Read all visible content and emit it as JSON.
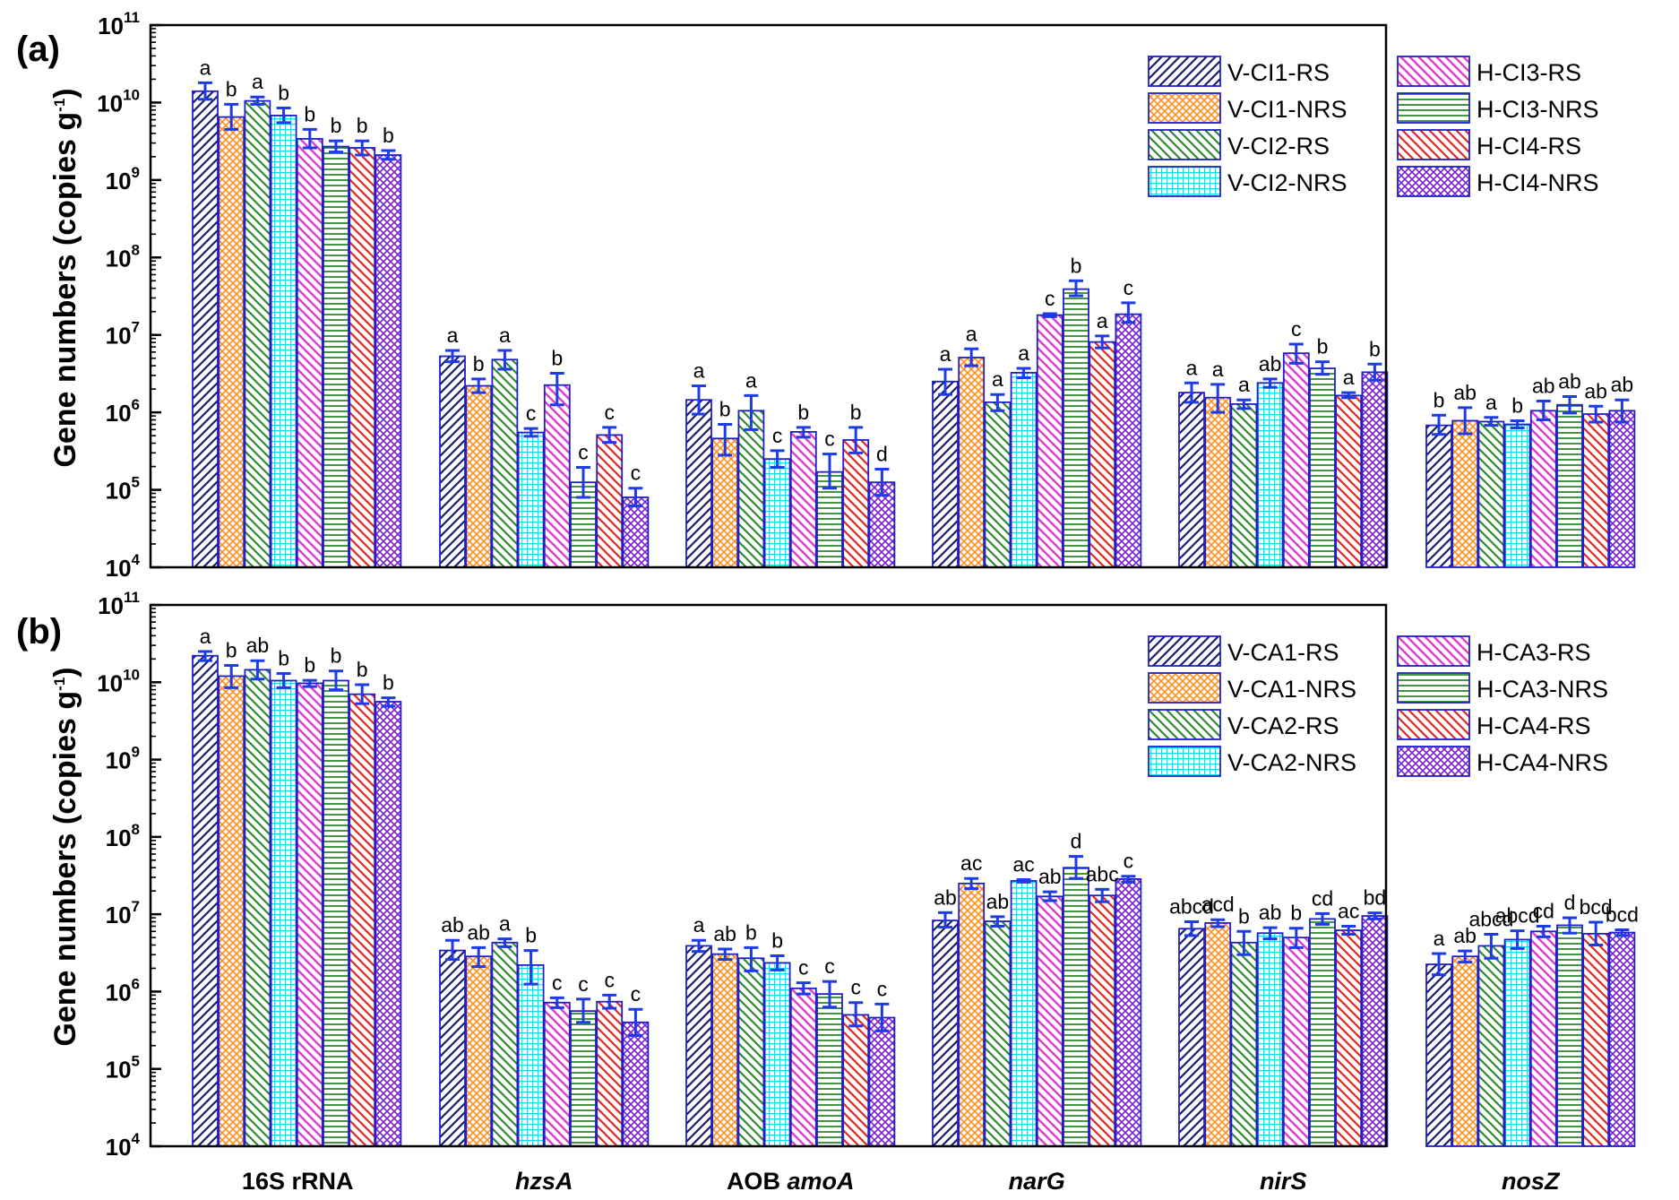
{
  "figure": {
    "y_axis_title": "Gene numbers (copies g",
    "y_axis_title_sup": "-1",
    "y_axis_title_end": ")"
  },
  "chart_data": [
    {
      "type": "bar",
      "panel_label": "(a)",
      "yscale": "log",
      "ylim": [
        10000,
        100000000000
      ],
      "yticks": [
        {
          "base": "10",
          "exp": "4",
          "value": 10000
        },
        {
          "base": "10",
          "exp": "5",
          "value": 100000
        },
        {
          "base": "10",
          "exp": "6",
          "value": 1000000
        },
        {
          "base": "10",
          "exp": "7",
          "value": 10000000
        },
        {
          "base": "10",
          "exp": "8",
          "value": 100000000
        },
        {
          "base": "10",
          "exp": "9",
          "value": 1000000000
        },
        {
          "base": "10",
          "exp": "10",
          "value": 10000000000
        },
        {
          "base": "10",
          "exp": "11",
          "value": 100000000000
        }
      ],
      "categories": [
        "16S rRNA",
        "hzsA",
        "AOB amoA",
        "narG",
        "nirS",
        "nosZ"
      ],
      "legend_position": "top-right",
      "series": [
        {
          "name": "V-CI1-RS",
          "color": "#1a1a6e",
          "pattern": "diag-left",
          "values": [
            14000000000,
            5300000,
            1450000,
            2500000,
            1800000,
            680000
          ],
          "err_low": [
            11000000000,
            4500000,
            950000,
            1700000,
            1350000,
            520000
          ],
          "err_high": [
            18000000000,
            6300000,
            2200000,
            3600000,
            2400000,
            920000
          ],
          "letters": [
            "a",
            "a",
            "a",
            "a",
            "a",
            "b"
          ]
        },
        {
          "name": "V-CI1-NRS",
          "color": "#ff8c1a",
          "pattern": "cross",
          "values": [
            6500000000,
            2200000,
            460000,
            5100000,
            1550000,
            780000
          ],
          "err_low": [
            4500000000,
            1800000,
            280000,
            4000000,
            1000000,
            530000
          ],
          "err_high": [
            9500000000,
            2700000,
            700000,
            6600000,
            2300000,
            1150000
          ],
          "letters": [
            "b",
            "b",
            "b",
            "a",
            "a",
            "ab"
          ]
        },
        {
          "name": "V-CI2-RS",
          "color": "#2e8b2e",
          "pattern": "diag-right",
          "values": [
            10500000000,
            4800000,
            1050000,
            1350000,
            1280000,
            760000
          ],
          "err_low": [
            9500000000,
            3600000,
            600000,
            1050000,
            1120000,
            680000
          ],
          "err_high": [
            11800000000,
            6300000,
            1650000,
            1700000,
            1450000,
            860000
          ],
          "letters": [
            "a",
            "a",
            "a",
            "a",
            "a",
            "a"
          ]
        },
        {
          "name": "V-CI2-NRS",
          "color": "#00e5ee",
          "pattern": "grid",
          "values": [
            6800000000,
            550000,
            250000,
            3250000,
            2400000,
            700000
          ],
          "err_low": [
            5500000000,
            490000,
            195000,
            2800000,
            2100000,
            630000
          ],
          "err_high": [
            8500000000,
            620000,
            320000,
            3700000,
            2700000,
            780000
          ],
          "letters": [
            "b",
            "c",
            "c",
            "a",
            "ab",
            "b"
          ]
        },
        {
          "name": "H-CI3-RS",
          "color": "#e040d0",
          "pattern": "diag-right-fine",
          "values": [
            3400000000,
            2250000,
            560000,
            18000000,
            5800000,
            1050000
          ],
          "err_low": [
            2600000000,
            1250000,
            480000,
            17200000,
            4300000,
            800000
          ],
          "err_high": [
            4500000000,
            3200000,
            640000,
            18800000,
            7600000,
            1400000
          ],
          "letters": [
            "b",
            "b",
            "b",
            "c",
            "c",
            "ab"
          ]
        },
        {
          "name": "H-CI3-NRS",
          "color": "#2e8b2e",
          "pattern": "horizontal",
          "values": [
            2700000000,
            125000,
            170000,
            39000000,
            3700000,
            1250000
          ],
          "err_low": [
            2300000000,
            80000,
            105000,
            32000000,
            3100000,
            980000
          ],
          "err_high": [
            3200000000,
            195000,
            290000,
            50000000,
            4500000,
            1600000
          ],
          "letters": [
            "b",
            "c",
            "c",
            "b",
            "b",
            "ab"
          ]
        },
        {
          "name": "H-CI4-RS",
          "color": "#e8261e",
          "pattern": "diag-right",
          "values": [
            2600000000,
            510000,
            440000,
            8100000,
            1650000,
            950000
          ],
          "err_low": [
            2100000000,
            410000,
            300000,
            6800000,
            1550000,
            750000
          ],
          "err_high": [
            3200000000,
            640000,
            640000,
            9700000,
            1800000,
            1200000
          ],
          "letters": [
            "b",
            "c",
            "b",
            "a",
            "a",
            "ab"
          ]
        },
        {
          "name": "H-CI4-NRS",
          "color": "#7b1fd6",
          "pattern": "cross",
          "values": [
            2100000000,
            80000,
            125000,
            18500000,
            3300000,
            1050000
          ],
          "err_low": [
            1850000000,
            62000,
            85000,
            14500000,
            2600000,
            750000
          ],
          "err_high": [
            2400000000,
            105000,
            185000,
            26000000,
            4200000,
            1450000
          ],
          "letters": [
            "b",
            "c",
            "d",
            "c",
            "b",
            "ab"
          ]
        }
      ]
    },
    {
      "type": "bar",
      "panel_label": "(b)",
      "yscale": "log",
      "ylim": [
        10000,
        100000000000
      ],
      "yticks": [
        {
          "base": "10",
          "exp": "4",
          "value": 10000
        },
        {
          "base": "10",
          "exp": "5",
          "value": 100000
        },
        {
          "base": "10",
          "exp": "6",
          "value": 1000000
        },
        {
          "base": "10",
          "exp": "7",
          "value": 10000000
        },
        {
          "base": "10",
          "exp": "8",
          "value": 100000000
        },
        {
          "base": "10",
          "exp": "9",
          "value": 1000000000
        },
        {
          "base": "10",
          "exp": "10",
          "value": 10000000000
        },
        {
          "base": "10",
          "exp": "11",
          "value": 100000000000
        }
      ],
      "categories": [
        "16S rRNA",
        "hzsA",
        "AOB amoA",
        "narG",
        "nirS",
        "nosZ"
      ],
      "legend_position": "top-right",
      "series": [
        {
          "name": "V-CA1-RS",
          "color": "#1a1a6e",
          "pattern": "diag-left",
          "values": [
            22000000000,
            3400000,
            3900000,
            8300000,
            6500000,
            2250000
          ],
          "err_low": [
            19000000000,
            2600000,
            3300000,
            6800000,
            5300000,
            1650000
          ],
          "err_high": [
            25000000000,
            4600000,
            4600000,
            10500000,
            8000000,
            3100000
          ],
          "letters": [
            "a",
            "ab",
            "a",
            "ab",
            "abcd",
            "a"
          ]
        },
        {
          "name": "V-CA1-NRS",
          "color": "#ff8c1a",
          "pattern": "cross",
          "values": [
            12000000000,
            2850000,
            3050000,
            25000000,
            7700000,
            2850000
          ],
          "err_low": [
            8500000000,
            2100000,
            2600000,
            21500000,
            6900000,
            2400000
          ],
          "err_high": [
            16500000000,
            3700000,
            3550000,
            29000000,
            8500000,
            3350000
          ],
          "letters": [
            "b",
            "ab",
            "ab",
            "ac",
            "acd",
            "ab"
          ]
        },
        {
          "name": "V-CA2-RS",
          "color": "#2e8b2e",
          "pattern": "diag-right",
          "values": [
            14500000000,
            4300000,
            2700000,
            8100000,
            4300000,
            3900000
          ],
          "err_low": [
            11000000000,
            3800000,
            1850000,
            7000000,
            3000000,
            2700000
          ],
          "err_high": [
            19000000000,
            4800000,
            3700000,
            9300000,
            6000000,
            5500000
          ],
          "letters": [
            "ab",
            "a",
            "b",
            "ab",
            "b",
            "abcd"
          ]
        },
        {
          "name": "V-CA2-NRS",
          "color": "#00e5ee",
          "pattern": "grid",
          "values": [
            10500000000,
            2200000,
            2350000,
            27000000,
            5700000,
            4700000
          ],
          "err_low": [
            8500000000,
            1250000,
            1900000,
            26000000,
            4800000,
            3600000
          ],
          "err_high": [
            13000000000,
            3400000,
            2900000,
            28000000,
            6700000,
            6100000
          ],
          "letters": [
            "b",
            "b",
            "b",
            "ac",
            "ab",
            "abcd"
          ]
        },
        {
          "name": "H-CA3-RS",
          "color": "#e040d0",
          "pattern": "diag-right-fine",
          "values": [
            9700000000,
            720000,
            1100000,
            17000000,
            5000000,
            6000000
          ],
          "err_low": [
            8800000000,
            620000,
            930000,
            15000000,
            3700000,
            5100000
          ],
          "err_high": [
            10600000000,
            830000,
            1300000,
            19500000,
            6600000,
            7000000
          ],
          "letters": [
            "b",
            "c",
            "c",
            "ab",
            "b",
            "cd"
          ]
        },
        {
          "name": "H-CA3-NRS",
          "color": "#2e8b2e",
          "pattern": "horizontal",
          "values": [
            10500000000,
            560000,
            930000,
            40000000,
            8700000,
            7200000
          ],
          "err_low": [
            8000000000,
            400000,
            630000,
            29000000,
            7400000,
            5700000
          ],
          "err_high": [
            14000000000,
            800000,
            1350000,
            56000000,
            10200000,
            9000000
          ],
          "letters": [
            "b",
            "c",
            "c",
            "d",
            "cd",
            "d"
          ]
        },
        {
          "name": "H-CA4-RS",
          "color": "#e8261e",
          "pattern": "diag-right",
          "values": [
            7000000000,
            740000,
            500000,
            17500000,
            6200000,
            5600000
          ],
          "err_low": [
            5300000000,
            610000,
            360000,
            14500000,
            5500000,
            4000000
          ],
          "err_high": [
            9300000000,
            900000,
            720000,
            21000000,
            7000000,
            7900000
          ],
          "letters": [
            "b",
            "c",
            "c",
            "abc",
            "ac",
            "bcd"
          ]
        },
        {
          "name": "H-CA4-NRS",
          "color": "#7b1fd6",
          "pattern": "cross",
          "values": [
            5600000000,
            400000,
            460000,
            28500000,
            9500000,
            5800000
          ],
          "err_low": [
            4900000000,
            270000,
            310000,
            26000000,
            8700000,
            5300000
          ],
          "err_high": [
            6300000000,
            590000,
            690000,
            31000000,
            10400000,
            6300000
          ],
          "letters": [
            "b",
            "c",
            "c",
            "c",
            "bd",
            "bcd"
          ]
        }
      ]
    }
  ]
}
